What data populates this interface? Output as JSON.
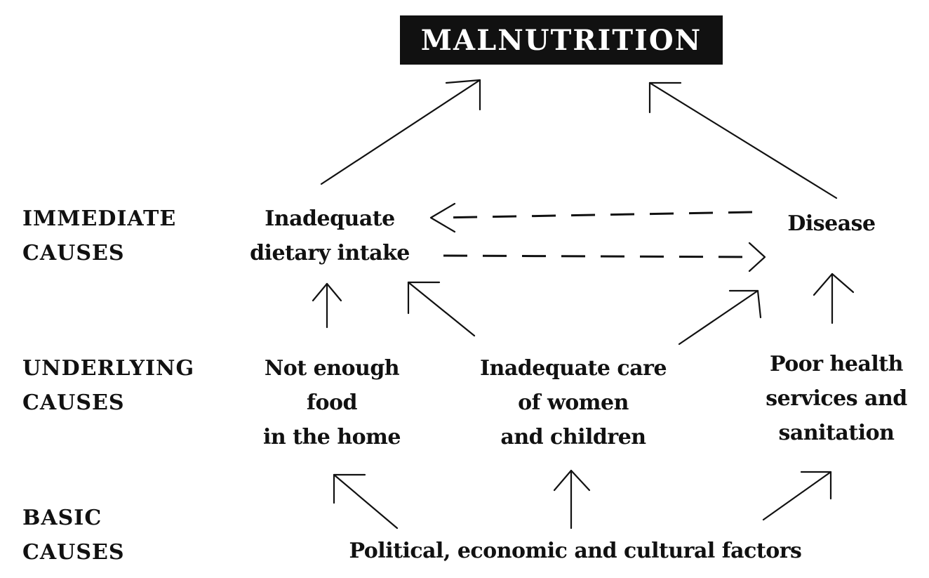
{
  "title": "MALNUTRITION",
  "levels": {
    "immediate": [
      "IMMEDIATE",
      "CAUSES"
    ],
    "underlying": [
      "UNDERLYING",
      "CAUSES"
    ],
    "basic": [
      "BASIC",
      "CAUSES"
    ]
  },
  "nodes": {
    "dietary_intake": [
      "Inadequate",
      "dietary intake"
    ],
    "disease": [
      "Disease"
    ],
    "food": [
      "Not enough",
      "food",
      "in the home"
    ],
    "care": [
      "Inadequate care",
      "of women",
      "and children"
    ],
    "health": [
      "Poor health",
      "services and",
      "sanitation"
    ],
    "basic": [
      "Political, economic and cultural factors"
    ]
  }
}
